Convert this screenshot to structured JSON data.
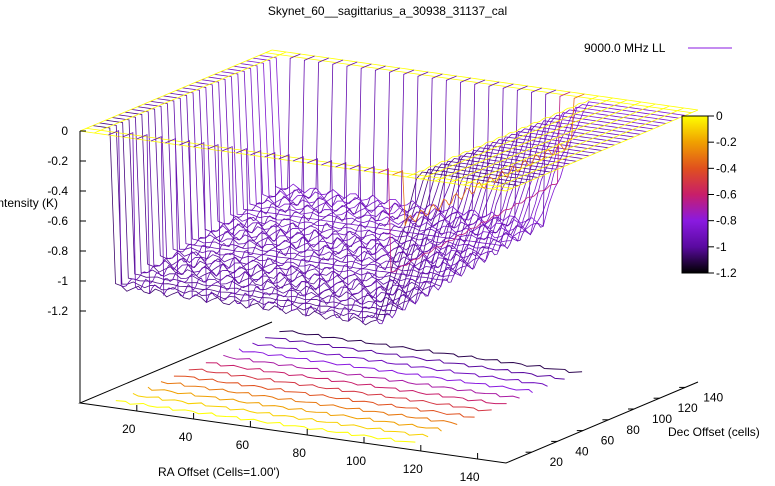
{
  "chart_data": {
    "type": "surface3d",
    "title": "Skynet_60__sagittarius_a_30938_31137_cal",
    "xlabel": "RA Offset (Cells=1.00')",
    "ylabel": "Dec Offset (cells)",
    "zlabel": "Intensity (K)",
    "x_ticks": [
      20,
      40,
      60,
      80,
      100,
      120,
      140
    ],
    "y_ticks": [
      20,
      40,
      60,
      80,
      100,
      120,
      140
    ],
    "z_ticks": [
      "0",
      "-0.2",
      "-0.4",
      "-0.6",
      "-0.8",
      "-1",
      "-1.2"
    ],
    "xlim": [
      0,
      150
    ],
    "ylim": [
      0,
      150
    ],
    "zlim": [
      -1.2,
      0
    ],
    "colorbar_ticks": [
      "0",
      "-0.2",
      "-0.4",
      "-0.6",
      "-0.8",
      "-1",
      "-1.2"
    ],
    "colorbar_range": [
      -1.2,
      0
    ],
    "colormap": [
      "#000000",
      "#5a0aa0",
      "#8a1ae0",
      "#c81e6a",
      "#e0501e",
      "#f0a000",
      "#ffff00"
    ],
    "legend": [
      {
        "name": "9000.0 MHz LL",
        "color": "#8a1ae0"
      }
    ],
    "legend_placement": "top-right",
    "contour_levels": [
      0,
      -0.1,
      -0.2,
      -0.3,
      -0.4,
      -0.5,
      -0.6,
      -0.7,
      -0.8,
      -0.9,
      -1.0,
      -1.1
    ],
    "surface": {
      "plateau_value": 0,
      "basin_value_deep": -1.05,
      "basin_value_shallow": -0.85,
      "basin_x_range": [
        8,
        115
      ],
      "basin_y_range": [
        10,
        140
      ]
    }
  }
}
